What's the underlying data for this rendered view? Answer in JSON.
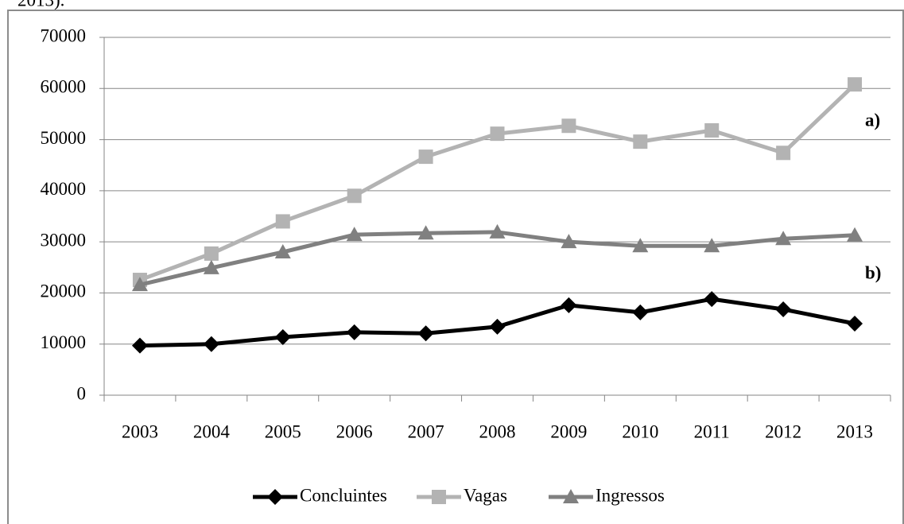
{
  "caption": "2013).",
  "chart_data": {
    "type": "line",
    "categories": [
      "2003",
      "2004",
      "2005",
      "2006",
      "2007",
      "2008",
      "2009",
      "2010",
      "2011",
      "2012",
      "2013"
    ],
    "series": [
      {
        "name": "Concluintes",
        "color": "#000000",
        "marker": "diamond",
        "values": [
          9700,
          10000,
          11350,
          12300,
          12100,
          13400,
          17600,
          16200,
          18800,
          16800,
          14000
        ]
      },
      {
        "name": "Vagas",
        "color": "#b3b3b3",
        "marker": "square",
        "values": [
          22550,
          27700,
          34000,
          39000,
          46650,
          51150,
          52700,
          49600,
          51800,
          47400,
          60800
        ]
      },
      {
        "name": "Ingressos",
        "color": "#808080",
        "marker": "triangle",
        "values": [
          21600,
          24900,
          28000,
          31400,
          31700,
          31900,
          30000,
          29200,
          29200,
          30600,
          31300
        ]
      }
    ],
    "ylim": [
      0,
      70000
    ],
    "yticks": [
      0,
      10000,
      20000,
      30000,
      40000,
      50000,
      60000,
      70000
    ],
    "grid": true,
    "legend": "bottom",
    "annotations": [
      "a)",
      "b)"
    ]
  }
}
